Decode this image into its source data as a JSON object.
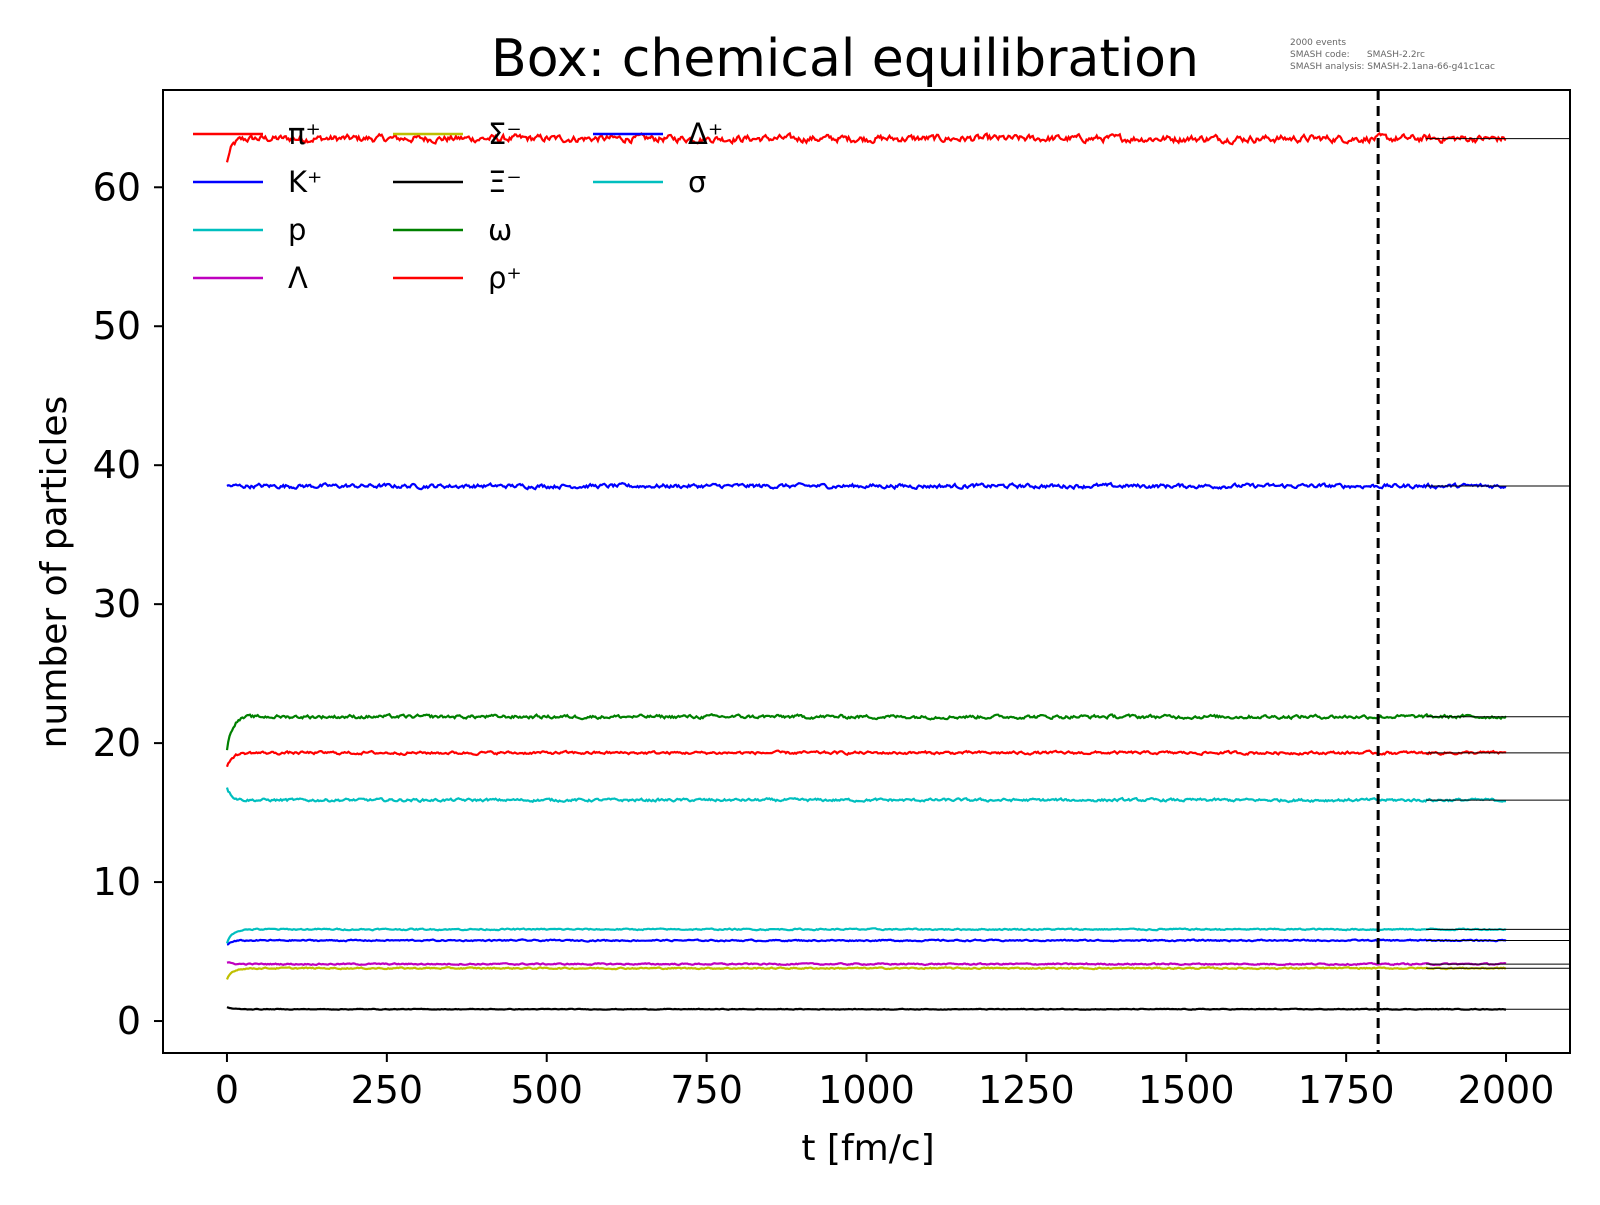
{
  "chart_data": {
    "type": "line",
    "title": "Box: chemical equilibration",
    "annotation_lines": [
      "2000 events",
      "SMASH code:      SMASH-2.2rc",
      "SMASH analysis: SMASH-2.1ana-66-g41c1cac"
    ],
    "xlabel": "t [fm/c]",
    "ylabel": "number of particles",
    "xlim": [
      -100,
      2100
    ],
    "ylim": [
      -2.3,
      67
    ],
    "xticks": [
      0,
      250,
      500,
      750,
      1000,
      1250,
      1500,
      1750,
      2000
    ],
    "yticks": [
      0,
      10,
      20,
      30,
      40,
      50,
      60
    ],
    "vertical_line": {
      "x": 1800,
      "style": "dashed",
      "color": "#000000"
    },
    "grid": false,
    "legend_placement": "top-left",
    "series": [
      {
        "name": "π⁺",
        "color": "#ff0000",
        "start": 61.8,
        "eq": 63.5,
        "noise": 0.2,
        "ref": 63.5
      },
      {
        "name": "K⁺",
        "color": "#0000ff",
        "start": 38.5,
        "eq": 38.5,
        "noise": 0.12,
        "ref": 38.5
      },
      {
        "name": "p",
        "color": "#00bfbf",
        "start": 16.8,
        "eq": 15.9,
        "noise": 0.08,
        "ref": 15.9
      },
      {
        "name": "Λ",
        "color": "#bf00bf",
        "start": 4.2,
        "eq": 4.1,
        "noise": 0.04,
        "ref": 4.1
      },
      {
        "name": "Σ⁻",
        "color": "#bfbf00",
        "start": 3.0,
        "eq": 3.8,
        "noise": 0.04,
        "ref": 3.8
      },
      {
        "name": "Ξ⁻",
        "color": "#000000",
        "start": 1.0,
        "eq": 0.85,
        "noise": 0.02,
        "ref": 0.85
      },
      {
        "name": "ω",
        "color": "#008000",
        "start": 19.5,
        "eq": 21.9,
        "noise": 0.1,
        "ref": 21.9
      },
      {
        "name": "ρ⁺",
        "color": "#ff0000",
        "start": 18.3,
        "eq": 19.3,
        "noise": 0.08,
        "ref": 19.3
      },
      {
        "name": "Δ⁺",
        "color": "#0000ff",
        "start": 5.5,
        "eq": 5.8,
        "noise": 0.04,
        "ref": 5.8
      },
      {
        "name": "σ",
        "color": "#00bfbf",
        "start": 5.6,
        "eq": 6.6,
        "noise": 0.04,
        "ref": 6.6
      }
    ]
  }
}
